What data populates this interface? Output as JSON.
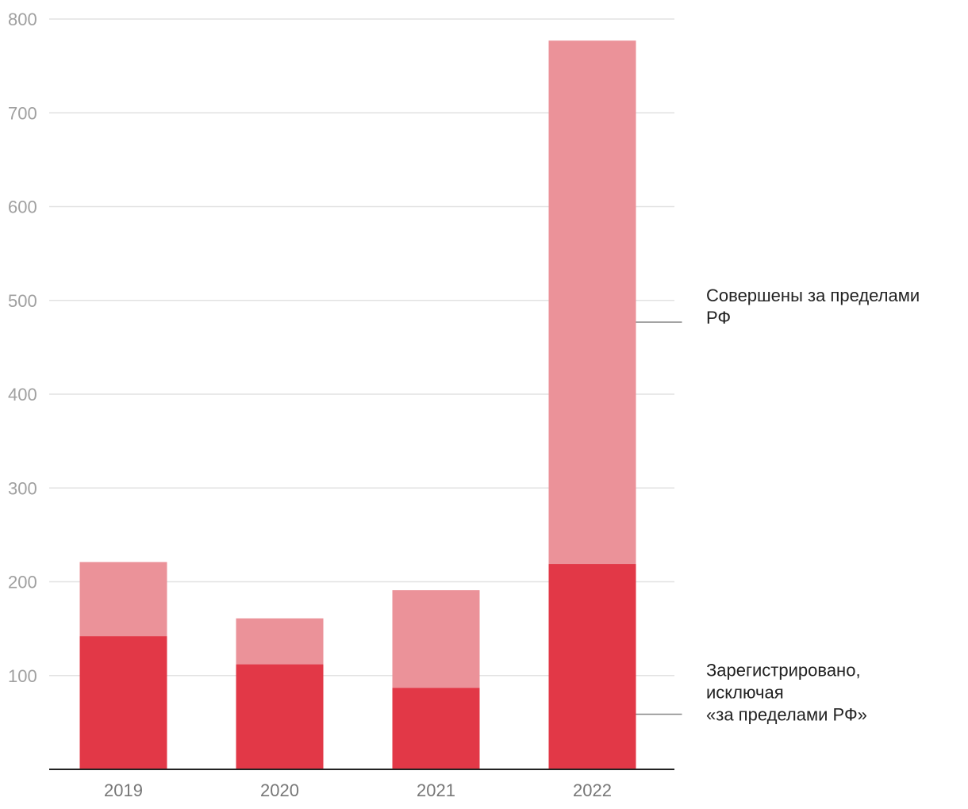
{
  "chart_data": {
    "type": "bar",
    "stacked": true,
    "categories": [
      "2019",
      "2020",
      "2021",
      "2022"
    ],
    "series": [
      {
        "name": "Зарегистрировано, исключая «за пределами РФ»",
        "label_lines": [
          "Зарегистрировано,",
          "исключая",
          "«за пределами РФ»"
        ],
        "color": "#e23847",
        "values": [
          142,
          112,
          87,
          219
        ]
      },
      {
        "name": "Совершены за пределами РФ",
        "label_lines": [
          "Совершены за пределами",
          "РФ"
        ],
        "color": "#eb9299",
        "values": [
          79,
          49,
          104,
          558
        ]
      }
    ],
    "ylim": [
      0,
      800
    ],
    "yticks": [
      100,
      200,
      300,
      400,
      500,
      600,
      700,
      800
    ],
    "grid": true,
    "legend": "right, as direct labels next to the last bar"
  }
}
